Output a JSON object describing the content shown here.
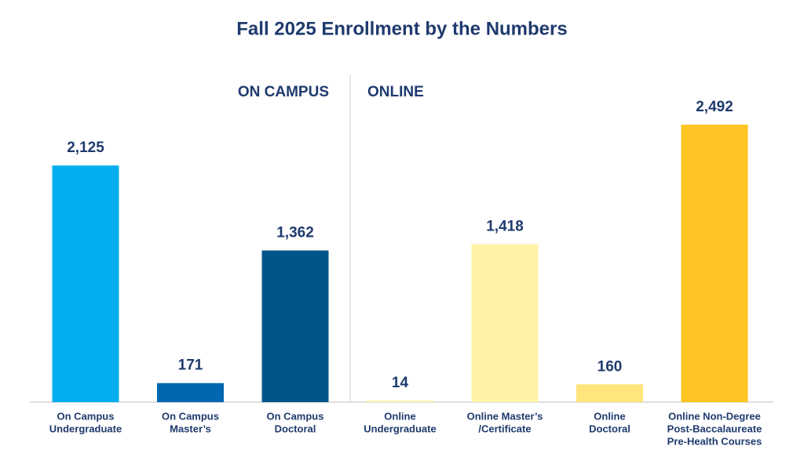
{
  "chart_data": {
    "type": "bar",
    "title": "Fall 2025 Enrollment by the Numbers",
    "group_labels": [
      "ON CAMPUS",
      "ONLINE"
    ],
    "categories": [
      [
        "On Campus",
        "Undergraduate"
      ],
      [
        "On Campus",
        "Master’s"
      ],
      [
        "On Campus",
        "Doctoral"
      ],
      [
        "Online",
        "Undergraduate"
      ],
      [
        "Online Master’s",
        "/Certificate"
      ],
      [
        "Online",
        "Doctoral"
      ],
      [
        "Online Non-Degree",
        "Post-Baccalaureate",
        "Pre-Health Courses"
      ]
    ],
    "values": [
      2125,
      171,
      1362,
      14,
      1418,
      160,
      2492
    ],
    "value_labels": [
      "2,125",
      "171",
      "1,362",
      "14",
      "1,418",
      "160",
      "2,492"
    ],
    "colors": [
      "#00aeef",
      "#0067b1",
      "#00548a",
      "#fff3b0",
      "#fff3a6",
      "#ffe57a",
      "#ffc423"
    ]
  }
}
